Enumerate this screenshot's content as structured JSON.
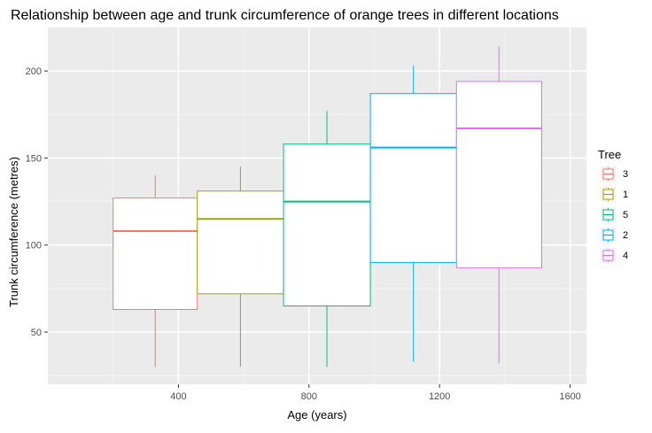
{
  "chart_data": {
    "type": "boxplot",
    "title": "Relationship between age and trunk circumference of orange trees in different locations",
    "xlabel": "Age (years)",
    "ylabel": "Trunk circumference (metres)",
    "xlim": [
      0,
      1650
    ],
    "ylim": [
      20,
      225
    ],
    "x_ticks": [
      400,
      800,
      1200,
      1600
    ],
    "y_ticks": [
      50,
      100,
      150,
      200
    ],
    "grid": true,
    "legend": {
      "title": "Tree",
      "position": "right"
    },
    "series": [
      {
        "name": "3",
        "color": "#F8766D",
        "x_left": 200,
        "x_right": 458,
        "whisker_x": 329,
        "min": 30,
        "q1": 63,
        "median": 108,
        "q3": 127,
        "max": 140
      },
      {
        "name": "1",
        "color": "#A3A500",
        "x_left": 458,
        "x_right": 722,
        "whisker_x": 590,
        "min": 30,
        "q1": 72,
        "median": 115,
        "q3": 131,
        "max": 145
      },
      {
        "name": "5",
        "color": "#00BF7D",
        "x_left": 722,
        "x_right": 988,
        "whisker_x": 855,
        "min": 30,
        "q1": 65,
        "median": 125,
        "q3": 158,
        "max": 177
      },
      {
        "name": "2",
        "color": "#00B0F6",
        "x_left": 988,
        "x_right": 1252,
        "whisker_x": 1120,
        "min": 33,
        "q1": 90,
        "median": 156,
        "q3": 187,
        "max": 203
      },
      {
        "name": "4",
        "color": "#E76BF3",
        "x_left": 1252,
        "x_right": 1513,
        "whisker_x": 1382,
        "min": 32,
        "q1": 87,
        "median": 167,
        "q3": 194,
        "max": 214
      }
    ]
  }
}
